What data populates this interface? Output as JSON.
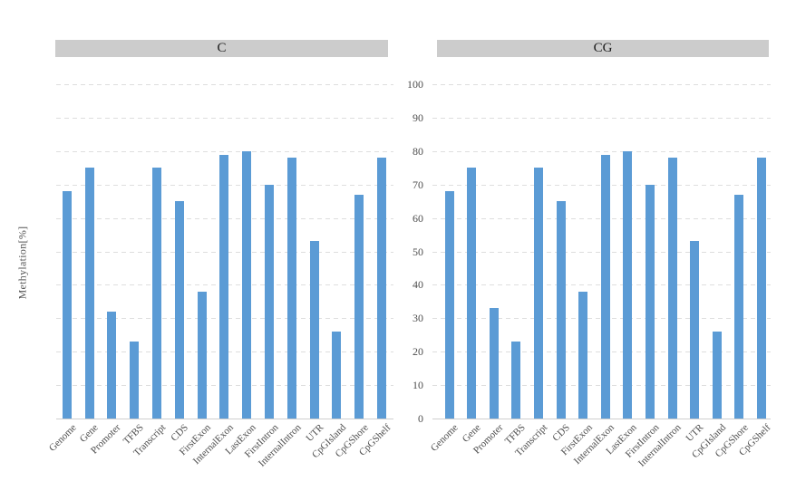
{
  "figure": {
    "y_axis_title": "Methylation[%]",
    "y_ticks": [
      0,
      10,
      20,
      30,
      40,
      50,
      60,
      70,
      80,
      90,
      100
    ],
    "colors": {
      "bar": "#5b9bd5",
      "header_bg": "#cccccc",
      "header_text": "#1a1a1a",
      "gridline": "#dedede",
      "baseline": "#cfcfcf",
      "tick_text": "#4d4d4d",
      "category_text": "#4d4d4d",
      "y_title_text": "#555555"
    }
  },
  "chart_data": [
    {
      "type": "bar",
      "title": "C",
      "categories": [
        "Genome",
        "Gene",
        "Promoter",
        "TFBS",
        "Transcript",
        "CDS",
        "FirstExon",
        "InternalExon",
        "LastExon",
        "FirstIntron",
        "InternalIntron",
        "UTR",
        "CpGIsland",
        "CpGShore",
        "CpGShelf"
      ],
      "values": [
        68,
        75,
        32,
        23,
        75,
        65,
        38,
        79,
        80,
        70,
        78,
        53,
        26,
        67,
        78
      ],
      "xlabel": "",
      "ylabel": "Methylation[%]",
      "ylim": [
        0,
        100
      ],
      "grid": "horizontal-dashed",
      "legend": "none"
    },
    {
      "type": "bar",
      "title": "CG",
      "categories": [
        "Genome",
        "Gene",
        "Promoter",
        "TFBS",
        "Transcript",
        "CDS",
        "FirstExon",
        "InternalExon",
        "LastExon",
        "FirstIntron",
        "InternalIntron",
        "UTR",
        "CpGIsland",
        "CpGShore",
        "CpGShelf"
      ],
      "values": [
        68,
        75,
        33,
        23,
        75,
        65,
        38,
        79,
        80,
        70,
        78,
        53,
        26,
        67,
        78
      ],
      "xlabel": "",
      "ylabel": "Methylation[%]",
      "ylim": [
        0,
        100
      ],
      "grid": "horizontal-dashed",
      "legend": "none"
    }
  ]
}
